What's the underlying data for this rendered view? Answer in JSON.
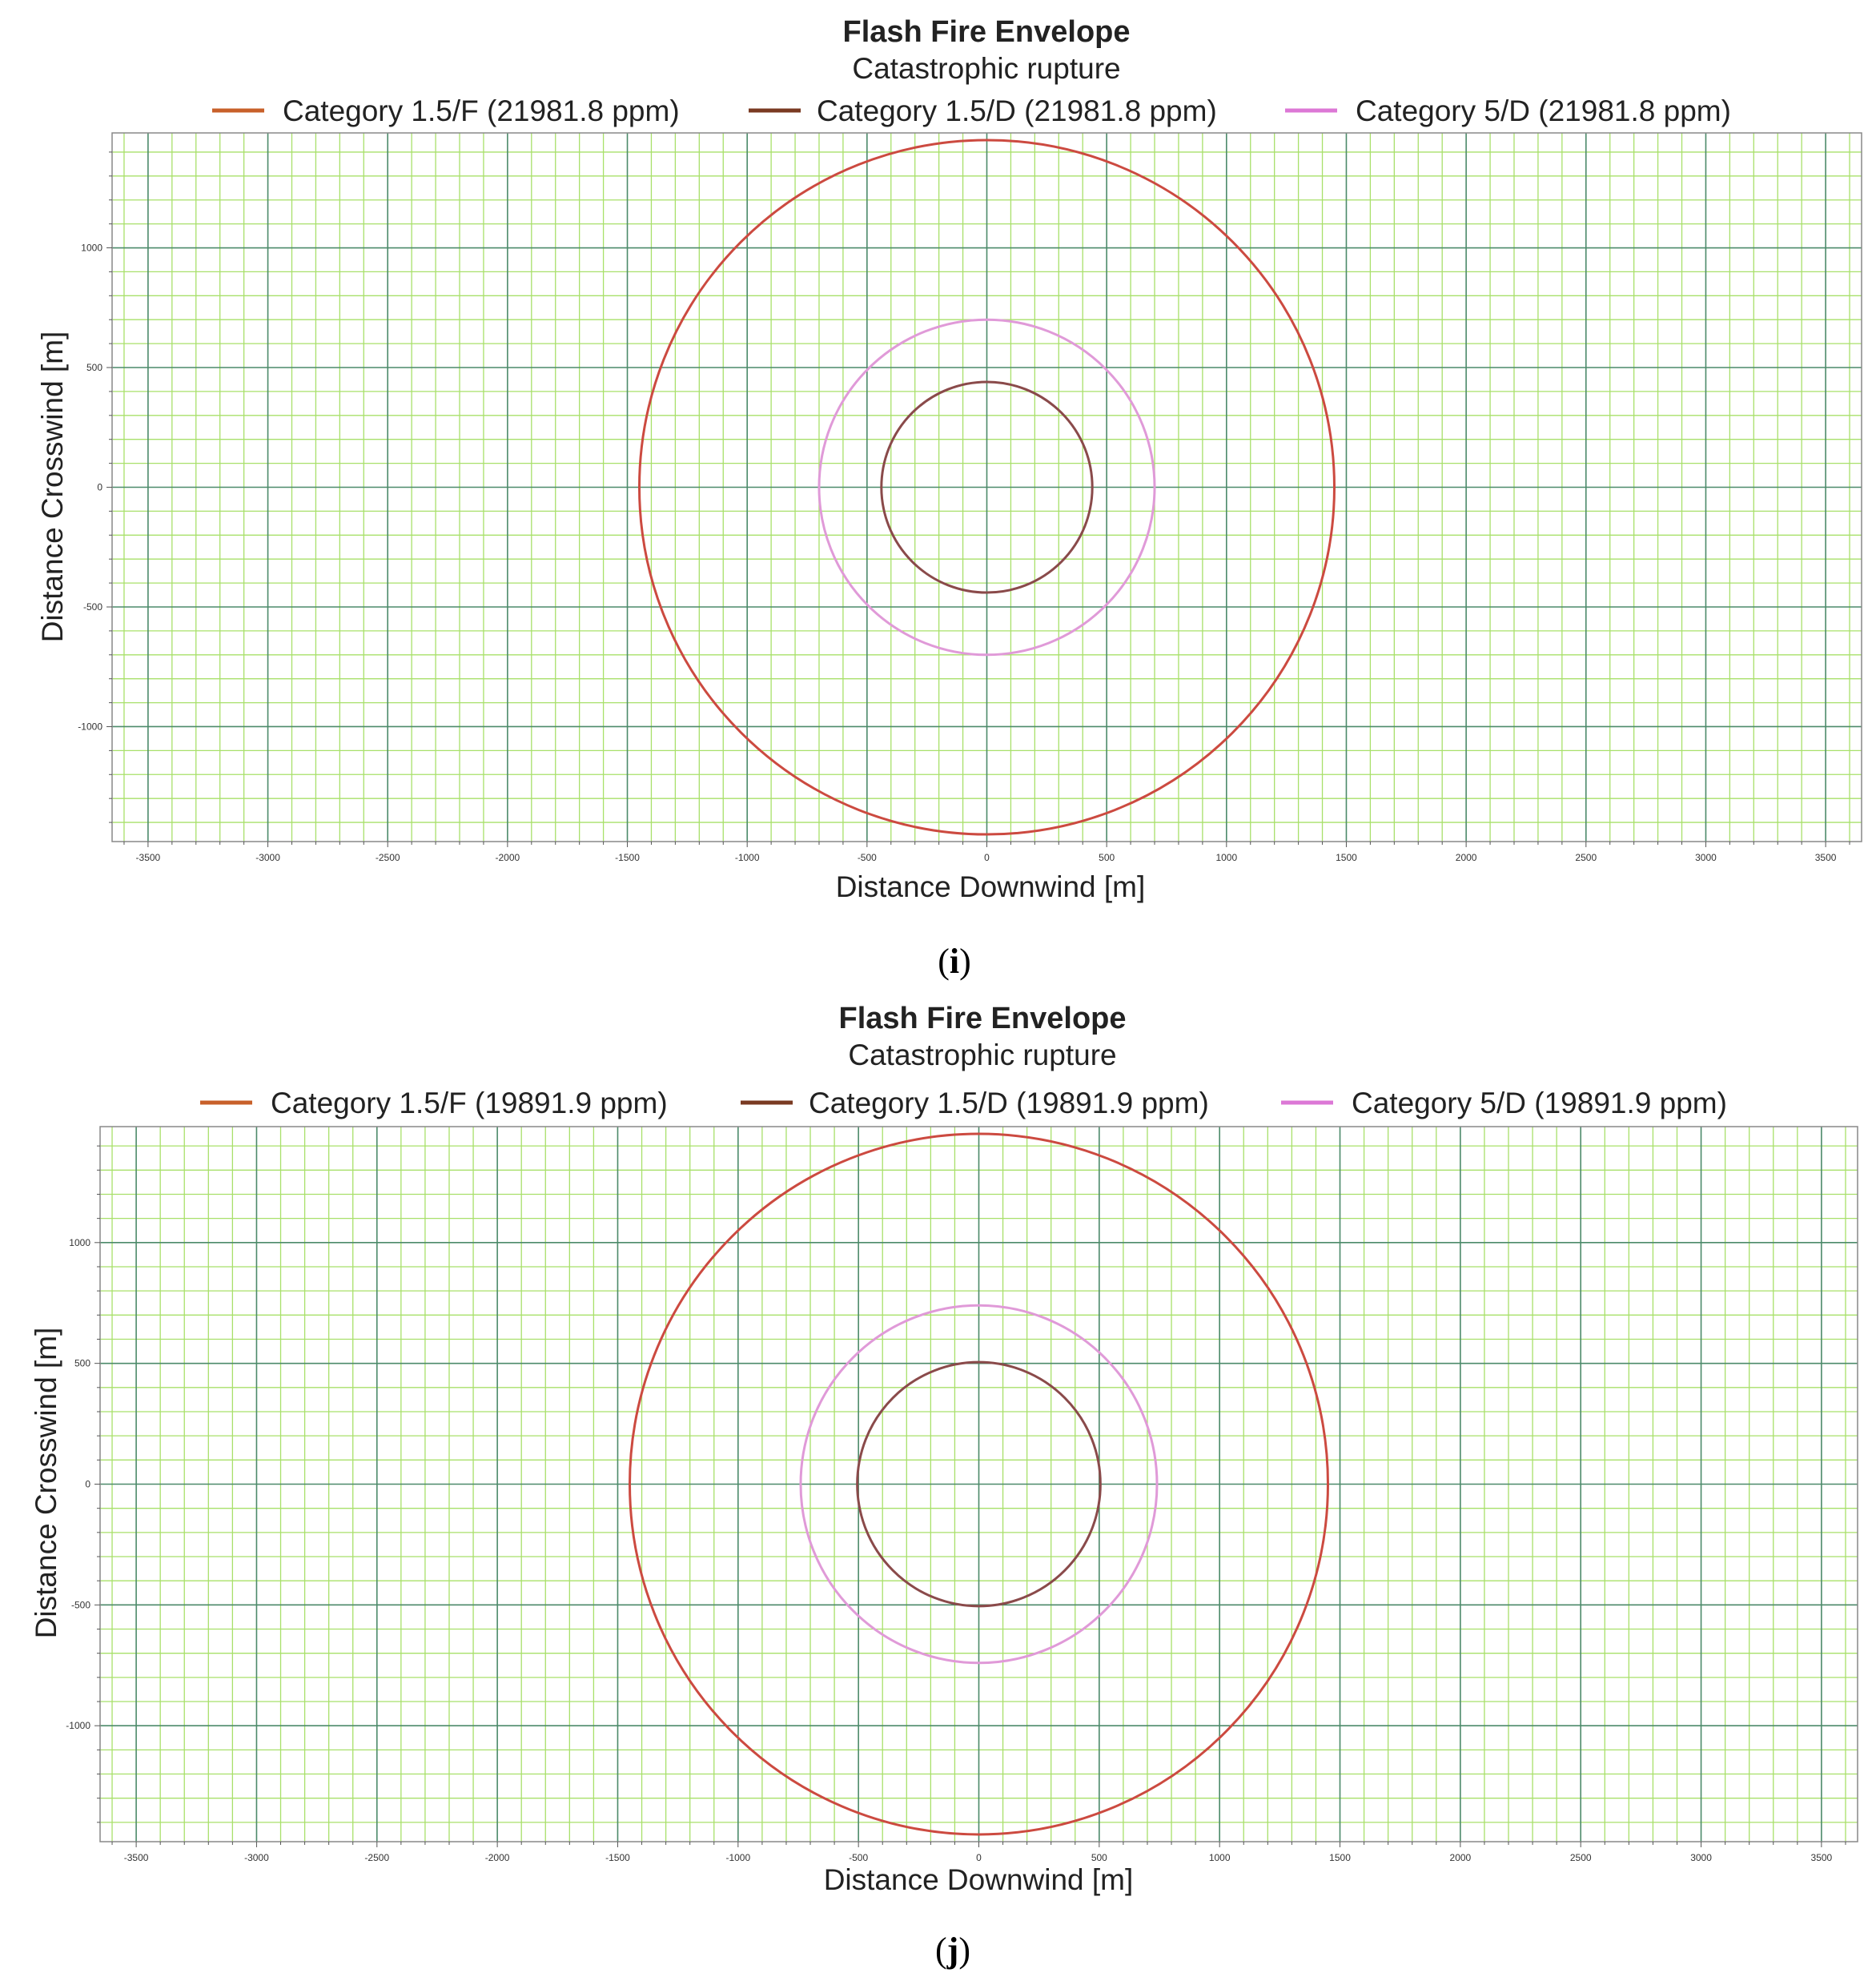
{
  "colors": {
    "minor_grid": "#a8e06a",
    "major_grid": "#4c8a6a",
    "frame": "#888888"
  },
  "chart_data": [
    {
      "type": "line",
      "panel": "i",
      "title": "Flash Fire Envelope",
      "subtitle": "Catastrophic rupture",
      "xlabel": "Distance Downwind [m]",
      "ylabel": "Distance Crosswind [m]",
      "xlim": [
        -3650,
        3650
      ],
      "ylim": [
        -1480,
        1480
      ],
      "x_ticks": [
        -3500,
        -3000,
        -2500,
        -2000,
        -1500,
        -1000,
        -500,
        0,
        500,
        1000,
        1500,
        2000,
        2500,
        3000,
        3500
      ],
      "y_ticks": [
        -1000,
        -500,
        0,
        500,
        1000
      ],
      "grid": true,
      "legend_position": "top",
      "series": [
        {
          "name": "Category 1.5/F (21981.8 ppm)",
          "color": "#c8602a",
          "shape": "circle",
          "center_x": 0,
          "center_y": 0,
          "radius_x": 1450,
          "radius_y": 1450
        },
        {
          "name": "Category 1.5/D (21981.8 ppm)",
          "color": "#7a3a22",
          "shape": "circle",
          "center_x": 0,
          "center_y": 0,
          "radius_x": 440,
          "radius_y": 440
        },
        {
          "name": "Category 5/D (21981.8 ppm)",
          "color": "#dc78d6",
          "shape": "circle",
          "center_x": 0,
          "center_y": 0,
          "radius_x": 700,
          "radius_y": 700
        }
      ],
      "series_line_colors": [
        "#cc4a40",
        "#8a4a4a",
        "#e09ad8"
      ]
    },
    {
      "type": "line",
      "panel": "j",
      "title": "Flash Fire Envelope",
      "subtitle": "Catastrophic rupture",
      "xlabel": "Distance Downwind [m]",
      "ylabel": "Distance Crosswind [m]",
      "xlim": [
        -3650,
        3650
      ],
      "ylim": [
        -1480,
        1480
      ],
      "x_ticks": [
        -3500,
        -3000,
        -2500,
        -2000,
        -1500,
        -1000,
        -500,
        0,
        500,
        1000,
        1500,
        2000,
        2500,
        3000,
        3500
      ],
      "y_ticks": [
        -1000,
        -500,
        0,
        500,
        1000
      ],
      "grid": true,
      "legend_position": "top",
      "series": [
        {
          "name": "Category 1.5/F (19891.9 ppm)",
          "color": "#c8602a",
          "shape": "circle",
          "center_x": 0,
          "center_y": 0,
          "radius_x": 1450,
          "radius_y": 1450
        },
        {
          "name": "Category 1.5/D (19891.9 ppm)",
          "color": "#7a3a22",
          "shape": "circle",
          "center_x": 0,
          "center_y": 0,
          "radius_x": 505,
          "radius_y": 505
        },
        {
          "name": "Category 5/D (19891.9 ppm)",
          "color": "#dc78d6",
          "shape": "circle",
          "center_x": 0,
          "center_y": 0,
          "radius_x": 740,
          "radius_y": 740
        }
      ],
      "series_line_colors": [
        "#cc4a40",
        "#8a4a4a",
        "#e09ad8"
      ]
    }
  ],
  "panel_labels": [
    {
      "open": "(",
      "letter": "i",
      "close": ")"
    },
    {
      "open": "(",
      "letter": "j",
      "close": ")"
    }
  ]
}
